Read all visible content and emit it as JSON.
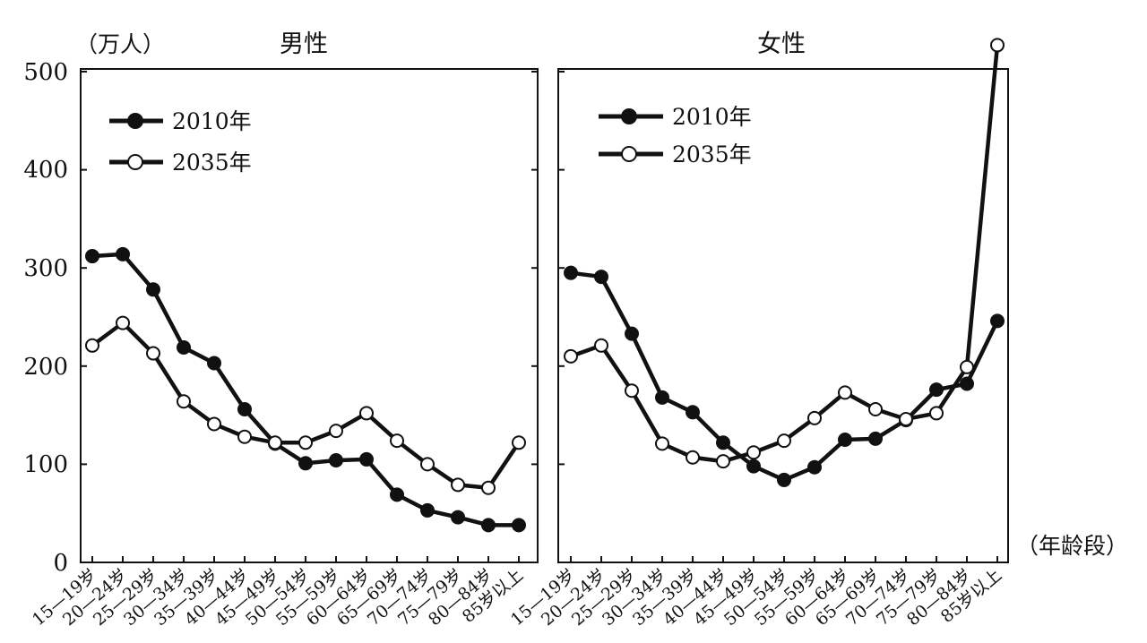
{
  "y_unit_label": "（万人）",
  "x_unit_label": "（年龄段）",
  "y_ticks": [
    "0",
    "100",
    "200",
    "300",
    "400",
    "500"
  ],
  "colors": {
    "line": "#111111",
    "filled_marker": "#111111",
    "open_marker": "#ffffff",
    "background": "#ffffff"
  },
  "chart_data": [
    {
      "type": "line",
      "title": "男性",
      "categories": [
        "15—19岁",
        "20—24岁",
        "25—29岁",
        "30—34岁",
        "35—39岁",
        "40—44岁",
        "45—49岁",
        "50—54岁",
        "55—59岁",
        "60—64岁",
        "65—69岁",
        "70—74岁",
        "75—79岁",
        "80—84岁",
        "85岁以上"
      ],
      "ylim": [
        0,
        500
      ],
      "yticks": [
        0,
        100,
        200,
        300,
        400,
        500
      ],
      "legend_position": "top-left",
      "grid": false,
      "series": [
        {
          "name": "2010年",
          "marker": "filled",
          "values": [
            312,
            314,
            278,
            219,
            203,
            156,
            121,
            101,
            104,
            105,
            69,
            53,
            46,
            38,
            38
          ]
        },
        {
          "name": "2035年",
          "marker": "open",
          "values": [
            221,
            244,
            213,
            164,
            141,
            128,
            122,
            122,
            134,
            152,
            124,
            100,
            79,
            76,
            122
          ]
        }
      ]
    },
    {
      "type": "line",
      "title": "女性",
      "categories": [
        "15—19岁",
        "20—24岁",
        "25—29岁",
        "30—34岁",
        "35—39岁",
        "40—44岁",
        "45—49岁",
        "50—54岁",
        "55—59岁",
        "60—64岁",
        "65—69岁",
        "70—74岁",
        "75—79岁",
        "80—84岁",
        "85岁以上"
      ],
      "ylim": [
        0,
        500
      ],
      "yticks": [
        0,
        100,
        200,
        300,
        400,
        500
      ],
      "legend_position": "top-left",
      "grid": false,
      "series": [
        {
          "name": "2010年",
          "marker": "filled",
          "values": [
            295,
            291,
            233,
            168,
            153,
            122,
            98,
            84,
            97,
            125,
            126,
            145,
            176,
            182,
            246
          ]
        },
        {
          "name": "2035年",
          "marker": "open",
          "values": [
            210,
            221,
            175,
            121,
            107,
            103,
            112,
            124,
            147,
            173,
            156,
            146,
            152,
            199,
            527
          ]
        }
      ]
    }
  ]
}
